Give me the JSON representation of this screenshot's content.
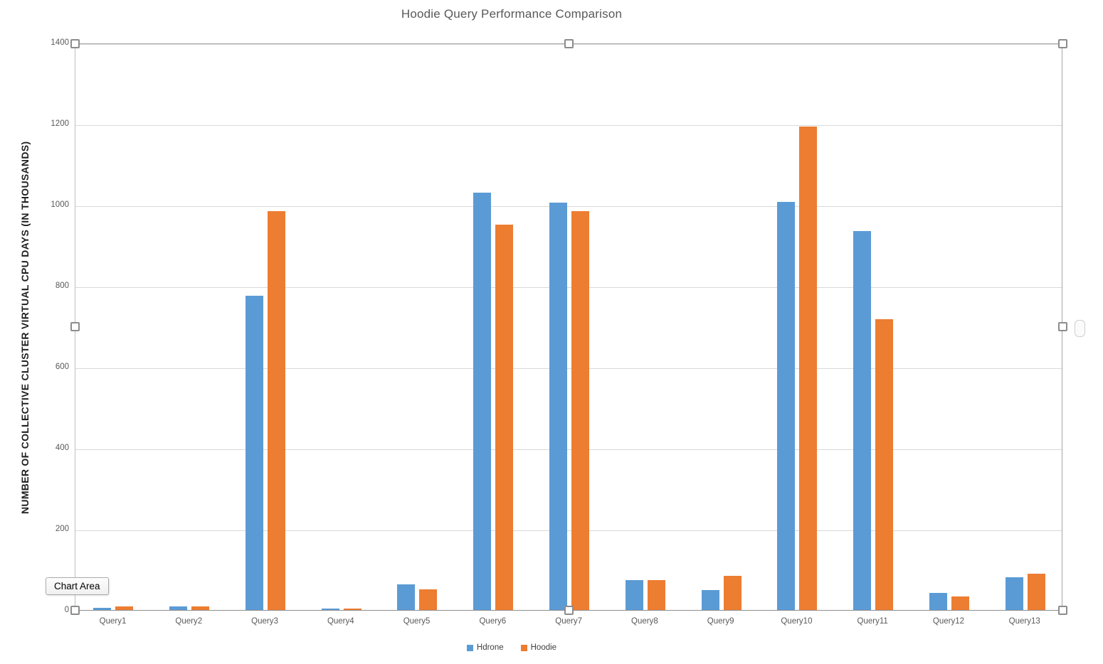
{
  "chart_data": {
    "type": "bar",
    "title": "Hoodie Query Performance Comparison",
    "xlabel": "",
    "ylabel": "NUMBER OF COLLECTIVE CLUSTER VIRTUAL CPU DAYS (IN THOUSANDS)",
    "categories": [
      "Query1",
      "Query2",
      "Query3",
      "Query4",
      "Query5",
      "Query6",
      "Query7",
      "Query8",
      "Query9",
      "Query10",
      "Query11",
      "Query12",
      "Query13"
    ],
    "series": [
      {
        "name": "Hdrone",
        "color": "#5B9BD5",
        "values": [
          5,
          8,
          775,
          4,
          63,
          1030,
          1005,
          73,
          49,
          1007,
          935,
          42,
          81
        ]
      },
      {
        "name": "Hoodie",
        "color": "#ED7D31",
        "values": [
          9,
          9,
          985,
          4,
          51,
          950,
          984,
          74,
          85,
          1193,
          718,
          34,
          90
        ]
      }
    ],
    "ylim": [
      0,
      1400
    ],
    "yticks": [
      0,
      200,
      400,
      600,
      800,
      1000,
      1200,
      1400
    ],
    "grid": true,
    "legend_position": "bottom"
  },
  "tooltip": {
    "label": "Chart Area"
  },
  "colors": {
    "title_text": "#595959",
    "tick_text": "#595959",
    "gridline": "#d9d9d9",
    "series1": "#5B9BD5",
    "series2": "#ED7D31"
  }
}
